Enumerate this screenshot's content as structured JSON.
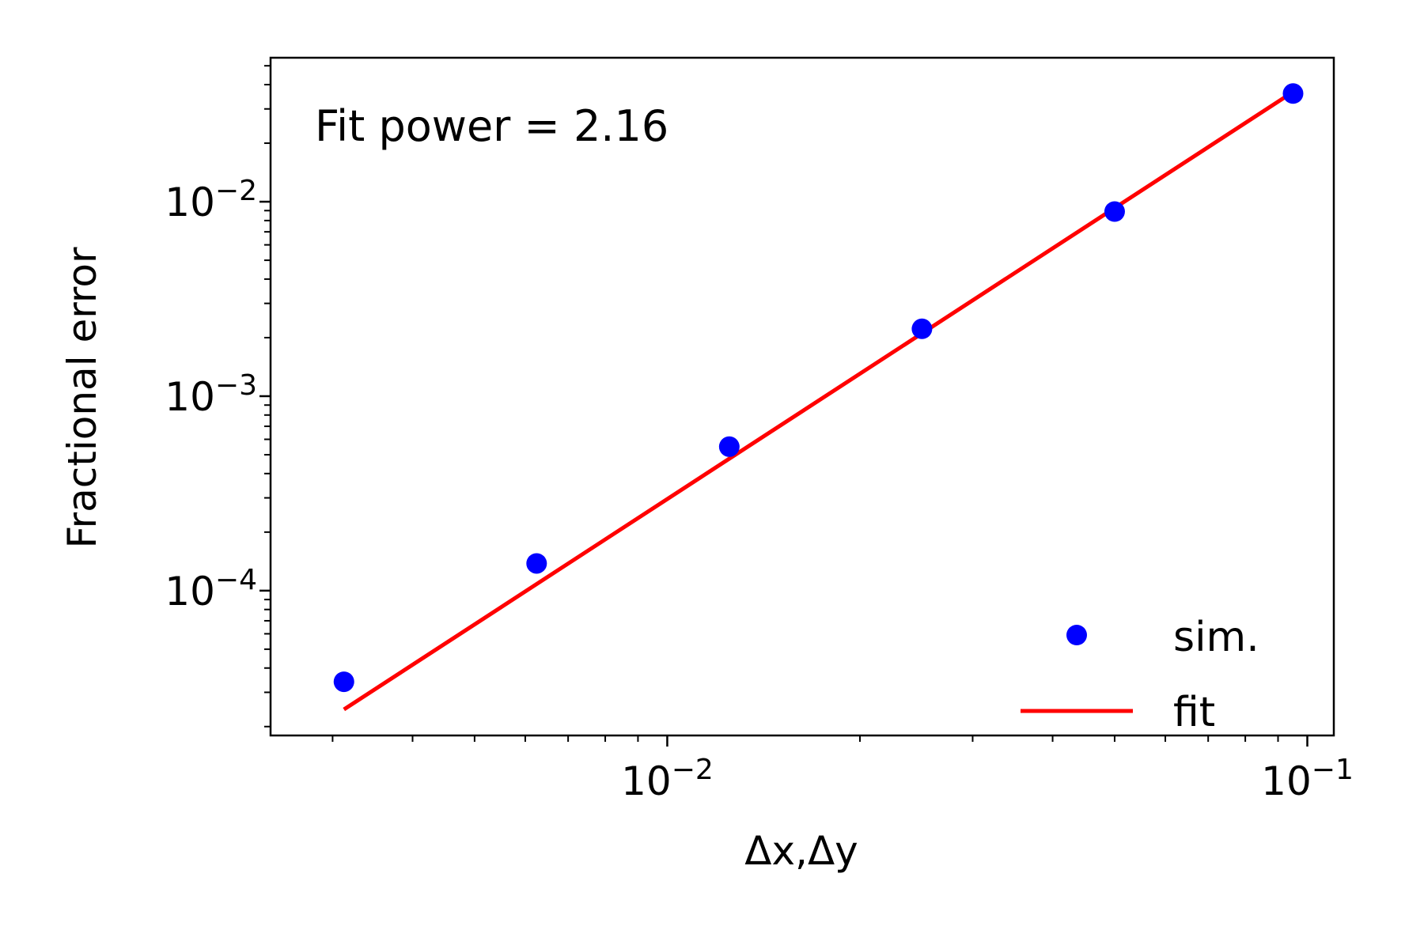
{
  "chart_data": {
    "type": "scatter",
    "title": "",
    "xlabel": "Δx,Δy",
    "ylabel": "Fractional error",
    "xscale": "log",
    "yscale": "log",
    "xlim": [
      0.0024,
      0.11
    ],
    "ylim": [
      1.8e-05,
      0.055
    ],
    "x_ticks": [
      {
        "value": 0.01,
        "base": "10",
        "exp": "−2"
      },
      {
        "value": 0.1,
        "base": "10",
        "exp": "−1"
      }
    ],
    "y_ticks": [
      {
        "value": 0.0001,
        "base": "10",
        "exp": "−4"
      },
      {
        "value": 0.001,
        "base": "10",
        "exp": "−3"
      },
      {
        "value": 0.01,
        "base": "10",
        "exp": "−2"
      }
    ],
    "annotation": "Fit power = 2.16",
    "legend_position": "lower-right",
    "grid": false,
    "series": [
      {
        "name": "sim.",
        "kind": "scatter",
        "color": "#0000ff",
        "x": [
          0.003125,
          0.00625,
          0.0125,
          0.025,
          0.05,
          0.095
        ],
        "y": [
          3.4e-05,
          0.000138,
          0.00055,
          0.00222,
          0.0089,
          0.036
        ]
      },
      {
        "name": "fit",
        "kind": "line",
        "color": "#ff0000",
        "x": [
          0.003125,
          0.095
        ],
        "y": [
          2.45e-05,
          0.0367
        ]
      }
    ]
  }
}
